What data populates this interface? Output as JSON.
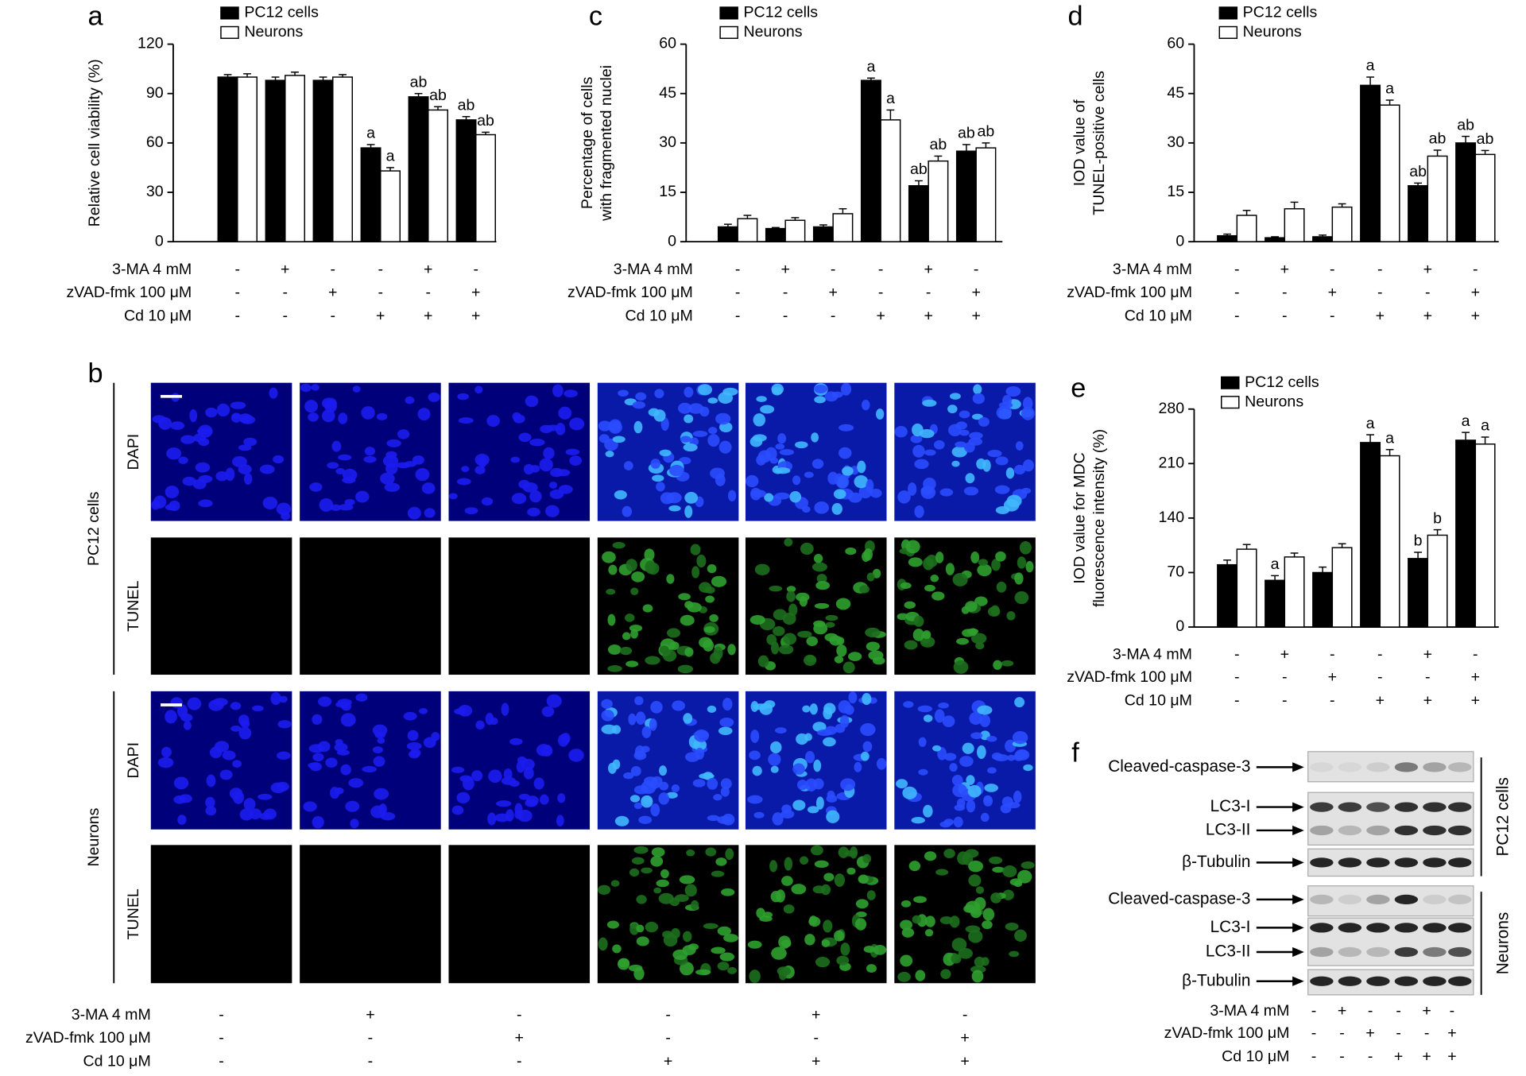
{
  "chart_data": [
    {
      "type": "bar",
      "panel": "a",
      "ylabel": [
        "Relative cell viability (%)"
      ],
      "ylim": [
        0,
        120
      ],
      "yticks": [
        0,
        30,
        60,
        90,
        120
      ],
      "series": [
        {
          "name": "PC12 cells",
          "color": "#000000",
          "values": [
            100,
            98,
            98,
            57,
            88,
            74
          ],
          "errors": [
            1.5,
            2,
            2,
            2,
            2,
            2
          ],
          "annotations": [
            null,
            null,
            null,
            "a",
            "ab",
            "ab"
          ]
        },
        {
          "name": "Neurons",
          "color": "#ffffff",
          "values": [
            100,
            101,
            100,
            43,
            80,
            65
          ],
          "errors": [
            2,
            2,
            1.5,
            2,
            2,
            1.5
          ],
          "annotations": [
            null,
            null,
            null,
            "a",
            "ab",
            "ab"
          ]
        }
      ],
      "treatments": [
        {
          "label": "3-MA 4 mM",
          "signs": [
            "-",
            "+",
            "-",
            "-",
            "+",
            "-"
          ]
        },
        {
          "label": "zVAD-fmk 100 μM",
          "signs": [
            "-",
            "-",
            "+",
            "-",
            "-",
            "+"
          ]
        },
        {
          "label": "Cd 10 μM",
          "signs": [
            "-",
            "-",
            "-",
            "+",
            "+",
            "+"
          ]
        }
      ]
    },
    {
      "type": "bar",
      "panel": "c",
      "ylabel": [
        "Percentage of cells",
        "with fragmented nuclei"
      ],
      "ylim": [
        0,
        60
      ],
      "yticks": [
        0,
        15,
        30,
        45,
        60
      ],
      "series": [
        {
          "name": "PC12 cells",
          "color": "#000000",
          "values": [
            4.5,
            4,
            4.5,
            49,
            17,
            27.5
          ],
          "errors": [
            0.8,
            0.3,
            0.6,
            0.7,
            1.5,
            2
          ],
          "annotations": [
            null,
            null,
            null,
            "a",
            "ab",
            "ab"
          ]
        },
        {
          "name": "Neurons",
          "color": "#ffffff",
          "values": [
            7,
            6.5,
            8.5,
            37,
            24.5,
            28.5
          ],
          "errors": [
            1,
            0.8,
            1.5,
            3,
            1.5,
            1.5
          ],
          "annotations": [
            null,
            null,
            null,
            "a",
            "ab",
            "ab"
          ]
        }
      ],
      "treatments": [
        {
          "label": "3-MA 4 mM",
          "signs": [
            "-",
            "+",
            "-",
            "-",
            "+",
            "-"
          ]
        },
        {
          "label": "zVAD-fmk 100 μM",
          "signs": [
            "-",
            "-",
            "+",
            "-",
            "-",
            "+"
          ]
        },
        {
          "label": "Cd 10 μM",
          "signs": [
            "-",
            "-",
            "-",
            "+",
            "+",
            "+"
          ]
        }
      ]
    },
    {
      "type": "bar",
      "panel": "d",
      "ylabel": [
        "IOD value of",
        "TUNEL-positive cells"
      ],
      "ylim": [
        0,
        60
      ],
      "yticks": [
        0,
        15,
        30,
        45,
        60
      ],
      "series": [
        {
          "name": "PC12 cells",
          "color": "#000000",
          "values": [
            1.8,
            1.2,
            1.5,
            47.5,
            17,
            30
          ],
          "errors": [
            0.5,
            0.3,
            0.5,
            2.5,
            0.8,
            2
          ],
          "annotations": [
            null,
            null,
            null,
            "a",
            "ab",
            "ab"
          ]
        },
        {
          "name": "Neurons",
          "color": "#ffffff",
          "values": [
            8,
            10,
            10.5,
            41.5,
            26,
            26.5
          ],
          "errors": [
            1.5,
            2,
            1,
            1.5,
            1.8,
            1.2
          ],
          "annotations": [
            null,
            null,
            null,
            "a",
            "ab",
            "ab"
          ]
        }
      ],
      "treatments": [
        {
          "label": "3-MA 4 mM",
          "signs": [
            "-",
            "+",
            "-",
            "-",
            "+",
            "-"
          ]
        },
        {
          "label": "zVAD-fmk 100 μM",
          "signs": [
            "-",
            "-",
            "+",
            "-",
            "-",
            "+"
          ]
        },
        {
          "label": "Cd 10 μM",
          "signs": [
            "-",
            "-",
            "-",
            "+",
            "+",
            "+"
          ]
        }
      ]
    },
    {
      "type": "bar",
      "panel": "e",
      "ylabel": [
        "IOD value for MDC",
        "fluorescence intensity (%)"
      ],
      "ylim": [
        0,
        280
      ],
      "yticks": [
        0,
        70,
        140,
        210,
        280
      ],
      "series": [
        {
          "name": "PC12 cells",
          "color": "#000000",
          "values": [
            80,
            60,
            70,
            237,
            88,
            240
          ],
          "errors": [
            6,
            6,
            7,
            10,
            8,
            10
          ],
          "annotations": [
            null,
            "a",
            null,
            "a",
            "b",
            "a"
          ]
        },
        {
          "name": "Neurons",
          "color": "#ffffff",
          "values": [
            100,
            90,
            102,
            220,
            118,
            235
          ],
          "errors": [
            6,
            5,
            5,
            8,
            7,
            9
          ],
          "annotations": [
            null,
            null,
            null,
            "a",
            "b",
            "a"
          ]
        }
      ],
      "treatments": [
        {
          "label": "3-MA 4 mM",
          "signs": [
            "-",
            "+",
            "-",
            "-",
            "+",
            "-"
          ]
        },
        {
          "label": "zVAD-fmk 100 μM",
          "signs": [
            "-",
            "-",
            "+",
            "-",
            "-",
            "+"
          ]
        },
        {
          "label": "Cd 10 μM",
          "signs": [
            "-",
            "-",
            "-",
            "+",
            "+",
            "+"
          ]
        }
      ]
    }
  ],
  "microscopy": {
    "panel": "b",
    "groups": [
      {
        "name": "PC12 cells",
        "rows": [
          "DAPI",
          "TUNEL"
        ]
      },
      {
        "name": "Neurons",
        "rows": [
          "DAPI",
          "TUNEL"
        ]
      }
    ],
    "treatments": [
      {
        "label": "3-MA 4 mM",
        "signs": [
          "-",
          "+",
          "-",
          "-",
          "+",
          "-"
        ]
      },
      {
        "label": "zVAD-fmk 100 μM",
        "signs": [
          "-",
          "-",
          "+",
          "-",
          "-",
          "+"
        ]
      },
      {
        "label": "Cd 10 μM",
        "signs": [
          "-",
          "-",
          "-",
          "+",
          "+",
          "+"
        ]
      }
    ]
  },
  "western_blot": {
    "panel": "f",
    "groups": [
      {
        "name": "PC12 cells",
        "bands": [
          "Cleaved-caspase-3",
          "LC3-I",
          "LC3-II",
          "β-Tubulin"
        ]
      },
      {
        "name": "Neurons",
        "bands": [
          "Cleaved-caspase-3",
          "LC3-I",
          "LC3-II",
          "β-Tubulin"
        ]
      }
    ],
    "treatments": [
      {
        "label": "3-MA 4 mM",
        "signs": [
          "-",
          "+",
          "-",
          "-",
          "+",
          "-"
        ]
      },
      {
        "label": "zVAD-fmk 100 μM",
        "signs": [
          "-",
          "-",
          "+",
          "-",
          "-",
          "+"
        ]
      },
      {
        "label": "Cd 10 μM",
        "signs": [
          "-",
          "-",
          "-",
          "+",
          "+",
          "+"
        ]
      }
    ]
  }
}
